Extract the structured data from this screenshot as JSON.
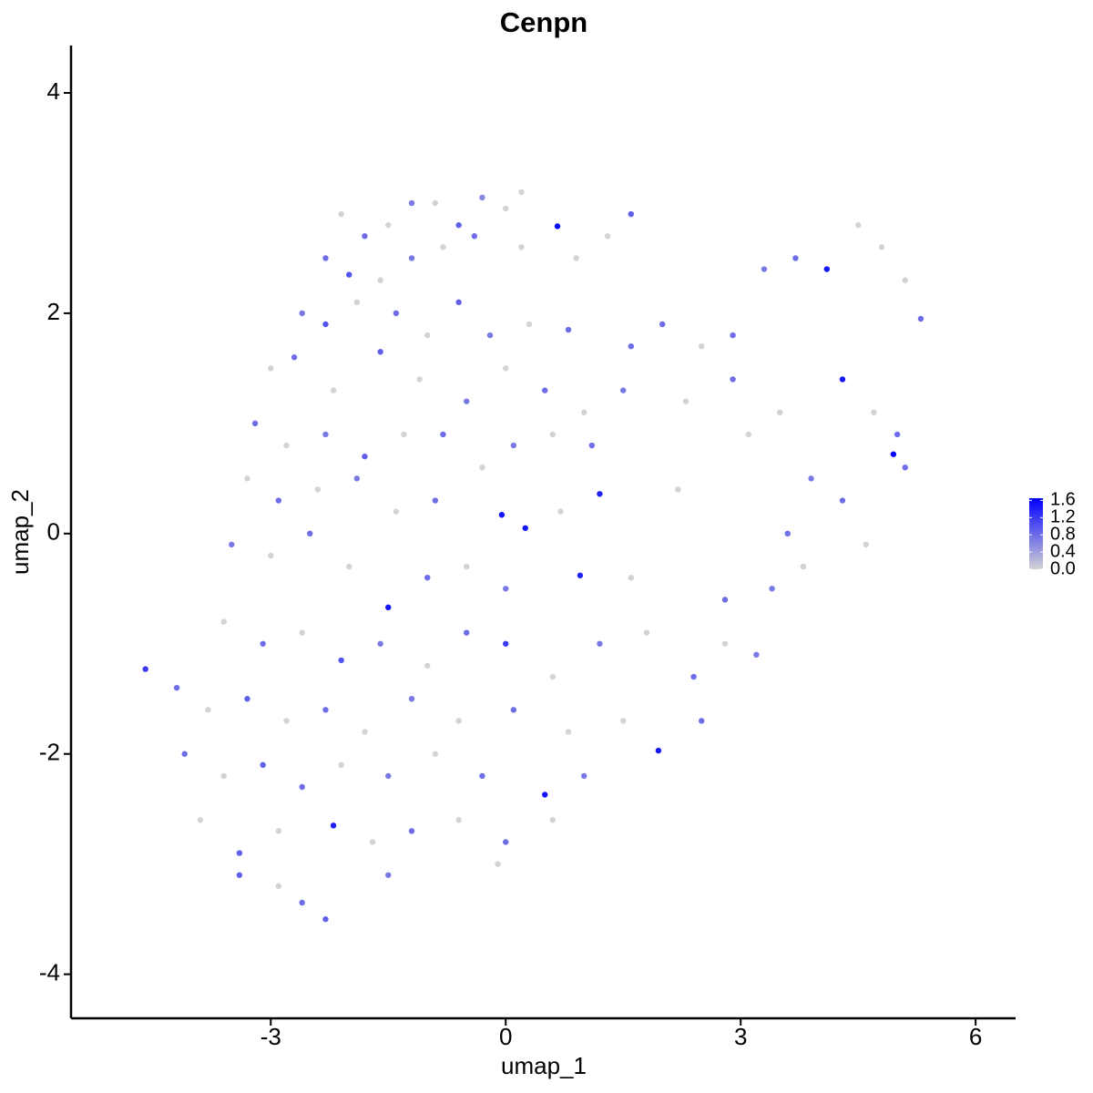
{
  "chart_data": {
    "type": "scatter",
    "title": "Cenpn",
    "xlabel": "umap_1",
    "ylabel": "umap_2",
    "x": [
      -2.1,
      -1.8,
      -1.5,
      -1.2,
      -0.9,
      -0.6,
      -0.3,
      0,
      0.2,
      0.66,
      -2.3,
      -2.0,
      -1.6,
      -1.2,
      -0.8,
      -0.4,
      0.2,
      0.9,
      1.6,
      1.3,
      -2.6,
      -2.3,
      -1.9,
      -1.4,
      -1.0,
      -0.6,
      -0.2,
      0.3,
      0.8,
      1.6,
      -3.0,
      -2.7,
      -2.2,
      -1.6,
      -1.1,
      -0.5,
      0.0,
      0.5,
      1.0,
      1.5,
      -3.2,
      -2.8,
      -2.3,
      -1.8,
      -1.3,
      -0.8,
      -0.3,
      0.1,
      0.6,
      1.1,
      -3.3,
      -2.9,
      -2.4,
      -1.9,
      -1.4,
      -0.9,
      -0.05,
      0.25,
      0.7,
      1.2,
      -3.5,
      -3.0,
      -2.5,
      -2.0,
      -1.5,
      -1.0,
      -0.5,
      0.0,
      0.95,
      1.6,
      -3.6,
      -3.1,
      -2.6,
      -2.1,
      -1.6,
      -1.0,
      -0.5,
      0.0,
      0.6,
      1.2,
      -4.2,
      -3.8,
      -3.3,
      -2.8,
      -2.3,
      -1.8,
      -1.2,
      -0.6,
      0.1,
      0.8,
      -4.6,
      -4.1,
      -3.6,
      -3.1,
      -2.6,
      -2.1,
      -1.5,
      -0.9,
      -0.3,
      0.5,
      -3.9,
      -3.4,
      -2.9,
      -2.2,
      -1.7,
      -1.2,
      -0.6,
      0.0,
      0.6,
      1.0,
      -3.4,
      -2.9,
      -2.6,
      -2.3,
      -1.5,
      -0.1,
      1.95,
      1.5,
      2.4,
      2.8,
      2.0,
      2.5,
      2.9,
      3.3,
      3.7,
      4.1,
      4.5,
      4.8,
      5.1,
      5.3,
      2.3,
      2.9,
      3.5,
      4.3,
      4.7,
      5.0,
      4.95,
      5.1,
      3.9,
      3.1,
      3.6,
      3.4,
      3.8,
      4.6,
      2.8,
      3.2,
      2.5,
      1.8,
      2.2,
      4.3
    ],
    "values": [
      2.9,
      2.7,
      2.8,
      3.0,
      3.0,
      2.8,
      3.05,
      2.95,
      3.1,
      2.79,
      2.5,
      2.35,
      2.3,
      2.5,
      2.6,
      2.7,
      2.6,
      2.5,
      2.9,
      2.7,
      2.0,
      1.9,
      2.1,
      2.0,
      1.8,
      2.1,
      1.8,
      1.9,
      1.85,
      1.7,
      1.5,
      1.6,
      1.3,
      1.65,
      1.4,
      1.2,
      1.5,
      1.3,
      1.1,
      1.3,
      1.0,
      0.8,
      0.9,
      0.7,
      0.9,
      0.9,
      0.6,
      0.8,
      0.9,
      0.8,
      0.5,
      0.3,
      0.4,
      0.5,
      0.2,
      0.3,
      0.17,
      0.05,
      0.2,
      0.36,
      -0.1,
      -0.2,
      0.0,
      -0.3,
      -0.67,
      -0.4,
      -0.3,
      -0.5,
      -0.38,
      -0.4,
      -0.8,
      -1.0,
      -0.9,
      -1.15,
      -1.0,
      -1.2,
      -0.9,
      -1.0,
      -1.3,
      -1.0,
      -1.4,
      -1.6,
      -1.5,
      -1.7,
      -1.6,
      -1.8,
      -1.5,
      -1.7,
      -1.6,
      -1.8,
      -1.23,
      -2.0,
      -2.2,
      -2.1,
      -2.3,
      -2.1,
      -2.2,
      -2.0,
      -2.2,
      -2.37,
      -2.6,
      -2.9,
      -2.7,
      -2.65,
      -2.8,
      -2.7,
      -2.6,
      -2.8,
      -2.6,
      -2.2,
      -3.1,
      -3.2,
      -3.35,
      -3.5,
      -3.1,
      -3.0,
      -1.97,
      -1.7,
      -1.3,
      -1.0,
      1.9,
      1.7,
      1.8,
      2.4,
      2.5,
      2.4,
      2.8,
      2.6,
      2.3,
      1.95,
      1.2,
      1.4,
      1.1,
      1.4,
      1.1,
      0.9,
      0.72,
      0.6,
      0.5,
      0.9,
      0.0,
      -0.5,
      -0.3,
      -0.1,
      -0.6,
      -1.1,
      -1.7,
      -0.9,
      0.4,
      0.3
    ],
    "expression": [
      0,
      0.8,
      0,
      0.7,
      0,
      0.9,
      0.6,
      0,
      0,
      1.6,
      0.8,
      1.0,
      0,
      0.7,
      0,
      0.8,
      0,
      0,
      0.9,
      0,
      0.7,
      1.0,
      0,
      0.8,
      0,
      0.9,
      0.7,
      0,
      0.8,
      0.8,
      0,
      0.8,
      0,
      0.9,
      0,
      0.7,
      0,
      0.8,
      0,
      0.7,
      0.8,
      0,
      0.7,
      0.9,
      0,
      0.8,
      0,
      0.7,
      0,
      0.8,
      0,
      0.8,
      0,
      0.7,
      0,
      0.8,
      1.5,
      1.5,
      0,
      1.4,
      0.7,
      0,
      0.8,
      0,
      1.5,
      0.8,
      0,
      0.7,
      1.4,
      0,
      0,
      0.8,
      0,
      1.0,
      0.7,
      0,
      0.8,
      1.2,
      0,
      0.7,
      0.8,
      0,
      0.9,
      0,
      0.8,
      0,
      0.7,
      0,
      0.8,
      0,
      1.2,
      0.8,
      0,
      0.9,
      0.8,
      0,
      0.7,
      0,
      0.8,
      1.5,
      0,
      0.9,
      0,
      1.4,
      0,
      0.8,
      0,
      0.8,
      0,
      0.7,
      0.9,
      0,
      0.8,
      0.9,
      0.7,
      0,
      1.5,
      0,
      0.8,
      0,
      0.8,
      0,
      0.8,
      0.7,
      0.8,
      1.5,
      0,
      0,
      0,
      0.8,
      0,
      0.8,
      0,
      1.5,
      0,
      0.8,
      1.6,
      0.8,
      0.7,
      0,
      0.8,
      0.7,
      0,
      0,
      0.8,
      0.7,
      0.8,
      0,
      0,
      0.8
    ],
    "low_color": "#d3d3d3",
    "high_color": "#0000ff",
    "color_lim": [
      0,
      1.65
    ],
    "color_ticks": [
      {
        "value": 0,
        "label": "0.0"
      },
      0.4,
      0.8,
      1.2,
      1.6
    ],
    "xlim": [
      -5.55,
      6.51
    ],
    "xticks": [
      -3,
      0,
      3,
      6
    ],
    "ylim": [
      -4.4,
      4.43
    ],
    "yticks": [
      -4,
      -2,
      0,
      2,
      4
    ]
  }
}
